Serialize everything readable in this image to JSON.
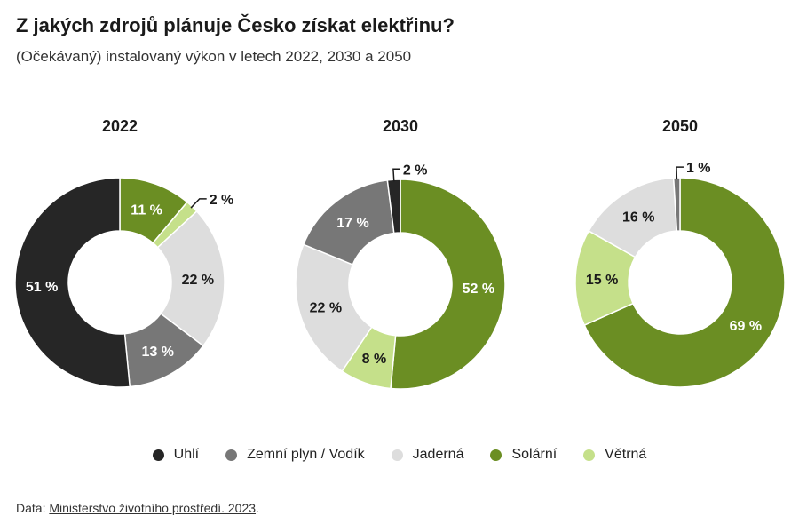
{
  "title": "Z jakých zdrojů plánuje Česko získat elektřinu?",
  "subtitle": "(Očekávaný) instalovaný výkon v letech 2022, 2030 a 2050",
  "colors": {
    "Uhlí": "#262626",
    "Zemní plyn / Vodík": "#777777",
    "Jaderná": "#dddddd",
    "Solární": "#6b8e23",
    "Větrná": "#c5e08a"
  },
  "chart_data": [
    {
      "type": "pie",
      "title": "2022",
      "slices": [
        {
          "label": "Solární",
          "value": 11,
          "text": "11 %"
        },
        {
          "label": "Větrná",
          "value": 2,
          "text": "2 %"
        },
        {
          "label": "Jaderná",
          "value": 22,
          "text": "22 %"
        },
        {
          "label": "Zemní plyn / Vodík",
          "value": 13,
          "text": "13 %"
        },
        {
          "label": "Uhlí",
          "value": 51,
          "text": "51 %"
        }
      ]
    },
    {
      "type": "pie",
      "title": "2030",
      "slices": [
        {
          "label": "Solární",
          "value": 52,
          "text": "52 %"
        },
        {
          "label": "Větrná",
          "value": 8,
          "text": "8 %"
        },
        {
          "label": "Jaderná",
          "value": 22,
          "text": "22 %"
        },
        {
          "label": "Zemní plyn / Vodík",
          "value": 17,
          "text": "17 %"
        },
        {
          "label": "Uhlí",
          "value": 2,
          "text": "2 %"
        }
      ]
    },
    {
      "type": "pie",
      "title": "2050",
      "slices": [
        {
          "label": "Solární",
          "value": 69,
          "text": "69 %"
        },
        {
          "label": "Větrná",
          "value": 15,
          "text": "15 %"
        },
        {
          "label": "Jaderná",
          "value": 16,
          "text": "16 %"
        },
        {
          "label": "Zemní plyn / Vodík",
          "value": 1,
          "text": "1 %"
        }
      ]
    }
  ],
  "legend": [
    {
      "label": "Uhlí",
      "color": "#262626"
    },
    {
      "label": "Zemní plyn / Vodík",
      "color": "#777777"
    },
    {
      "label": "Jaderná",
      "color": "#dddddd"
    },
    {
      "label": "Solární",
      "color": "#6b8e23"
    },
    {
      "label": "Větrná",
      "color": "#c5e08a"
    }
  ],
  "source": {
    "prefix": "Data: ",
    "link_text": "Ministerstvo životního prostředí. 2023",
    "suffix": "."
  }
}
